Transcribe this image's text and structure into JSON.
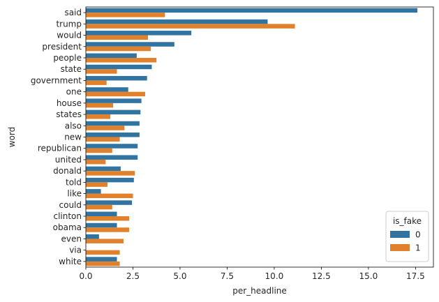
{
  "chart_data": {
    "type": "bar",
    "orientation": "horizontal",
    "xlabel": "per_headline",
    "ylabel": "word",
    "xlim": [
      0,
      18.45
    ],
    "x_ticks": [
      "0.0",
      "2.5",
      "5.0",
      "7.5",
      "10.0",
      "12.5",
      "15.0",
      "17.5"
    ],
    "grid": false,
    "categories": [
      "said",
      "trump",
      "would",
      "president",
      "people",
      "state",
      "government",
      "one",
      "house",
      "states",
      "also",
      "new",
      "republican",
      "united",
      "donald",
      "told",
      "like",
      "could",
      "clinton",
      "obama",
      "even",
      "via",
      "white"
    ],
    "legend": {
      "title": "is_fake",
      "position": "lower-right"
    },
    "series": [
      {
        "name": "0",
        "color": "#3274a1",
        "values": [
          17.6,
          9.65,
          5.6,
          4.7,
          2.7,
          3.5,
          3.25,
          2.25,
          2.95,
          2.9,
          2.85,
          2.85,
          2.75,
          2.75,
          1.85,
          2.55,
          0.8,
          2.45,
          1.65,
          1.65,
          0.7,
          0.0,
          1.65
        ]
      },
      {
        "name": "1",
        "color": "#e1812c",
        "values": [
          4.2,
          11.1,
          3.3,
          3.45,
          3.75,
          1.65,
          1.1,
          3.15,
          1.45,
          1.3,
          2.05,
          1.8,
          1.4,
          1.05,
          2.6,
          1.15,
          2.5,
          1.4,
          2.3,
          2.3,
          2.0,
          1.8,
          1.8
        ]
      }
    ]
  }
}
